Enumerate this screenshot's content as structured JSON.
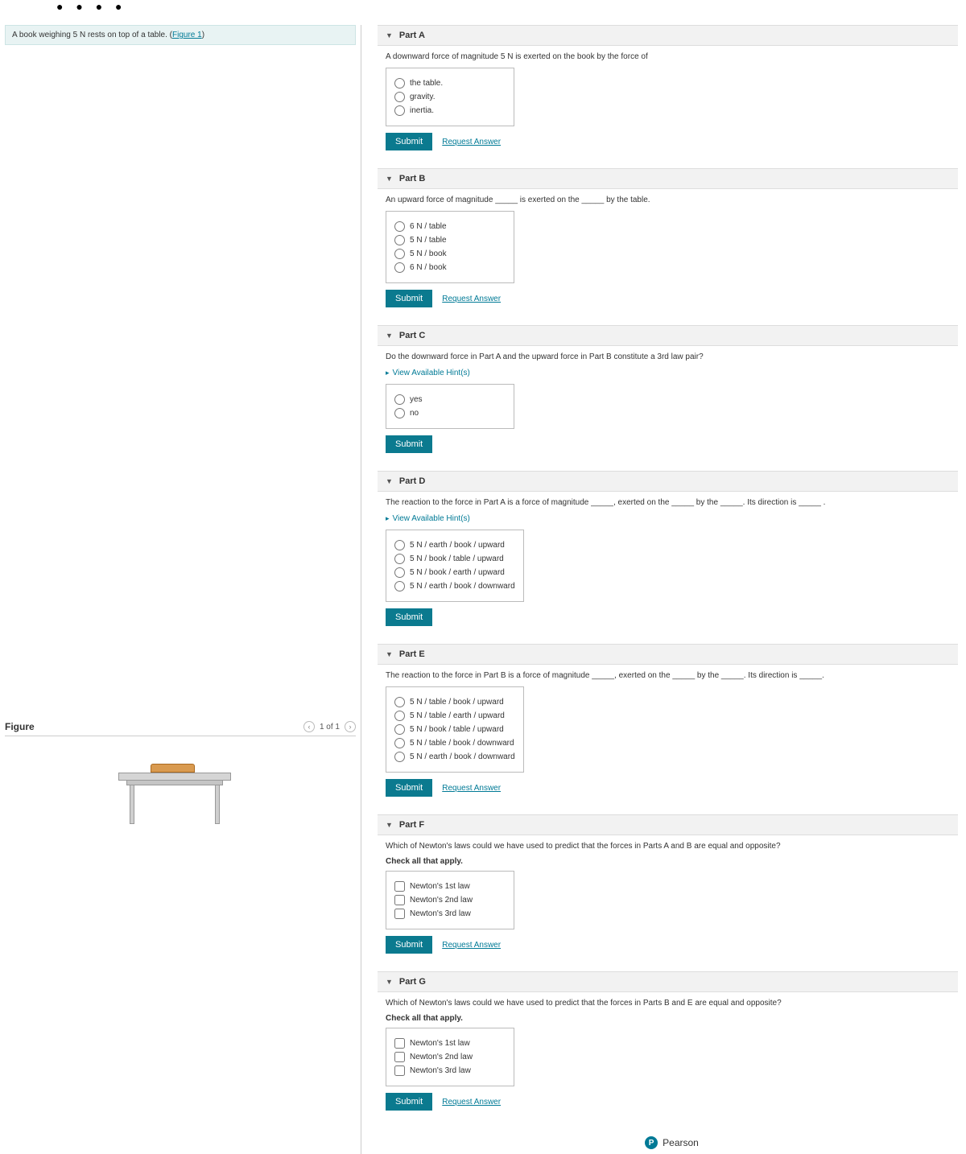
{
  "brand": {
    "name": "Pearson",
    "badge": "P"
  },
  "problem": {
    "text_prefix": "A book weighing 5 N rests on top of a table. (",
    "figure_link": "Figure 1",
    "text_suffix": ")"
  },
  "figure": {
    "title": "Figure",
    "pager": {
      "current": 1,
      "total": 1,
      "label": "1 of 1"
    }
  },
  "ui": {
    "submit": "Submit",
    "request_answer": "Request Answer",
    "view_hints": "View Available Hint(s)",
    "check_all": "Check all that apply."
  },
  "parts": {
    "A": {
      "label": "Part A",
      "prompt": "A downward force of magnitude 5 N is exerted on the book by the force of",
      "options": [
        "the table.",
        "gravity.",
        "inertia."
      ],
      "show_request": true
    },
    "B": {
      "label": "Part B",
      "prompt": "An upward force of magnitude _____ is exerted on the _____ by the table.",
      "options": [
        "6 N / table",
        "5 N / table",
        "5 N / book",
        "6 N / book"
      ],
      "show_request": true
    },
    "C": {
      "label": "Part C",
      "prompt": "Do the downward force in Part A and the upward force in Part B constitute a 3rd law pair?",
      "show_hints": true,
      "options": [
        "yes",
        "no"
      ],
      "show_request": false
    },
    "D": {
      "label": "Part D",
      "prompt": "The reaction to the force in Part A is a force of magnitude _____, exerted on the _____ by the _____. Its direction is _____ .",
      "show_hints": true,
      "options": [
        "5 N / earth / book / upward",
        "5 N / book / table / upward",
        "5 N / book / earth / upward",
        "5 N / earth / book / downward"
      ],
      "show_request": false
    },
    "E": {
      "label": "Part E",
      "prompt": "The reaction to the force in Part B is a force of magnitude _____, exerted on the _____ by the _____. Its direction is _____.",
      "options": [
        "5 N / table / book / upward",
        "5 N / table / earth / upward",
        "5 N / book / table / upward",
        "5 N / table / book / downward",
        "5 N / earth / book / downward"
      ],
      "show_request": true
    },
    "F": {
      "label": "Part F",
      "prompt": "Which of Newton's laws could we have used to predict that the forces in Parts A and B are equal and opposite?",
      "check_all": true,
      "options": [
        "Newton's 1st law",
        "Newton's 2nd law",
        "Newton's 3rd law"
      ],
      "show_request": true,
      "input_type": "checkbox"
    },
    "G": {
      "label": "Part G",
      "prompt": "Which of Newton's laws could we have used to predict that the forces in Parts B and E are equal and opposite?",
      "check_all": true,
      "options": [
        "Newton's 1st law",
        "Newton's 2nd law",
        "Newton's 3rd law"
      ],
      "show_request": true,
      "input_type": "checkbox"
    }
  }
}
